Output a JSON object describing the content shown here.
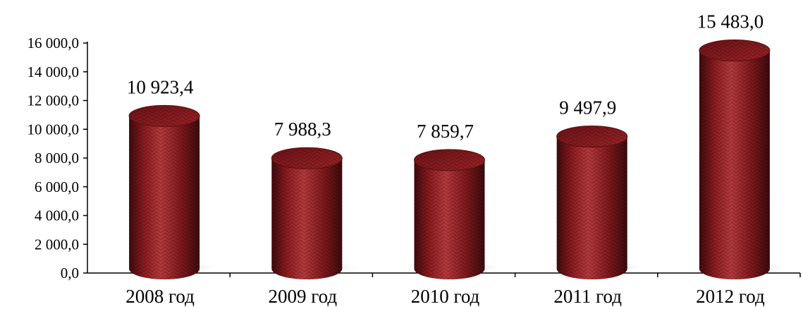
{
  "chart_data": {
    "type": "bar",
    "style": "3d-cylinder",
    "categories": [
      "2008 год",
      "2009 год",
      "2010 год",
      "2011 год",
      "2012 год"
    ],
    "values": [
      10923.4,
      7988.3,
      7859.7,
      9497.9,
      15483.0
    ],
    "value_labels": [
      "10 923,4",
      "7 988,3",
      "7 859,7",
      "9 497,9",
      "15 483,0"
    ],
    "ylim": [
      0,
      16000
    ],
    "yticks": [
      0,
      2000,
      4000,
      6000,
      8000,
      10000,
      12000,
      14000,
      16000
    ],
    "ytick_labels": [
      "0,0",
      "2 000,0",
      "4 000,0",
      "6 000,0",
      "8 000,0",
      "10 000,0",
      "12 000,0",
      "14 000,0",
      "16 000,0"
    ],
    "grid": false,
    "legend": "none",
    "colors": {
      "bar": "#8b1a1e",
      "bar_dark": "#4f0d10",
      "bar_light": "#b23a3e",
      "shadow": "#cfcfcf"
    }
  }
}
